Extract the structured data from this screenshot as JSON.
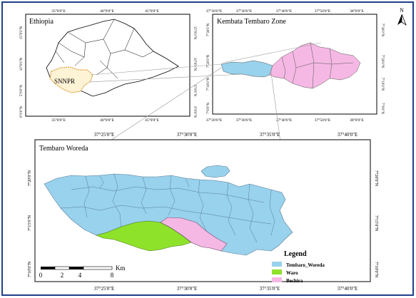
{
  "north_arrow": {
    "label": "N"
  },
  "inset_ethiopia": {
    "title": "Ethiopia",
    "region_label": "SNNPR",
    "top_ticks": [
      "35°0'0\"E",
      "40°0'0\"E",
      "45°0'0\"E"
    ],
    "bottom_ticks": [
      "35°0'0\"E",
      "40°0'0\"E",
      "45°0'0\"E"
    ],
    "left_ticks": [
      "15°0'0\"N",
      "10°0'0\"N",
      "5°0'0\"N",
      "0°0'0\"N"
    ],
    "right_ticks": [
      "15°0'0\"N",
      "10°0'0\"N",
      "5°0'0\"N",
      "0°0'0\"N"
    ]
  },
  "inset_zone": {
    "title": "Kembata Tembaro Zone",
    "top_ticks": [
      "37°20'0\"E",
      "37°30'0\"E",
      "37°40'0\"E",
      "37°50'0\"E",
      "38°0'0\"E"
    ],
    "bottom_ticks": [
      "37°20'0\"E",
      "37°30'0\"E",
      "37°40'0\"E",
      "37°50'0\"E",
      "38°0'0\"E"
    ],
    "left_ticks": [
      "7°30'0\"N",
      "7°20'0\"N",
      "7°10'0\"N",
      "7°0'0\"N"
    ],
    "right_ticks": [
      "7°30'0\"N",
      "7°20'0\"N",
      "7°10'0\"N",
      "7°0'0\"N"
    ]
  },
  "main_map": {
    "title": "Tembaro Woreda",
    "top_ticks": [
      "37°25'0\"E",
      "37°30'0\"E",
      "37°35'0\"E",
      "37°40'0\"E"
    ],
    "bottom_ticks": [
      "37°25'0\"E",
      "37°30'0\"E",
      "37°35'0\"E",
      "37°40'0\"E"
    ],
    "left_ticks": [
      "7°20'0\"N",
      "7°15'0\"N",
      "7°10'0\"N"
    ],
    "right_ticks": [
      "7°20'0\"N",
      "7°15'0\"N",
      "7°10'0\"N"
    ]
  },
  "scale_bar": {
    "labels": [
      "0",
      "2",
      "4",
      "8"
    ],
    "unit": "Km"
  },
  "legend": {
    "title": "Legend",
    "items": [
      {
        "label": "Tembaro_Woreda",
        "color": "#98d2ec"
      },
      {
        "label": "Waro",
        "color": "#8fe22a"
      },
      {
        "label": "Bechira",
        "color": "#f5b8e4"
      }
    ]
  },
  "colors": {
    "tembaro": "#98d2ec",
    "waro": "#8fe22a",
    "bechira": "#f5b8e4",
    "snnpr_outline": "#d8a13a",
    "frame_blue": "#1f3f8a"
  }
}
